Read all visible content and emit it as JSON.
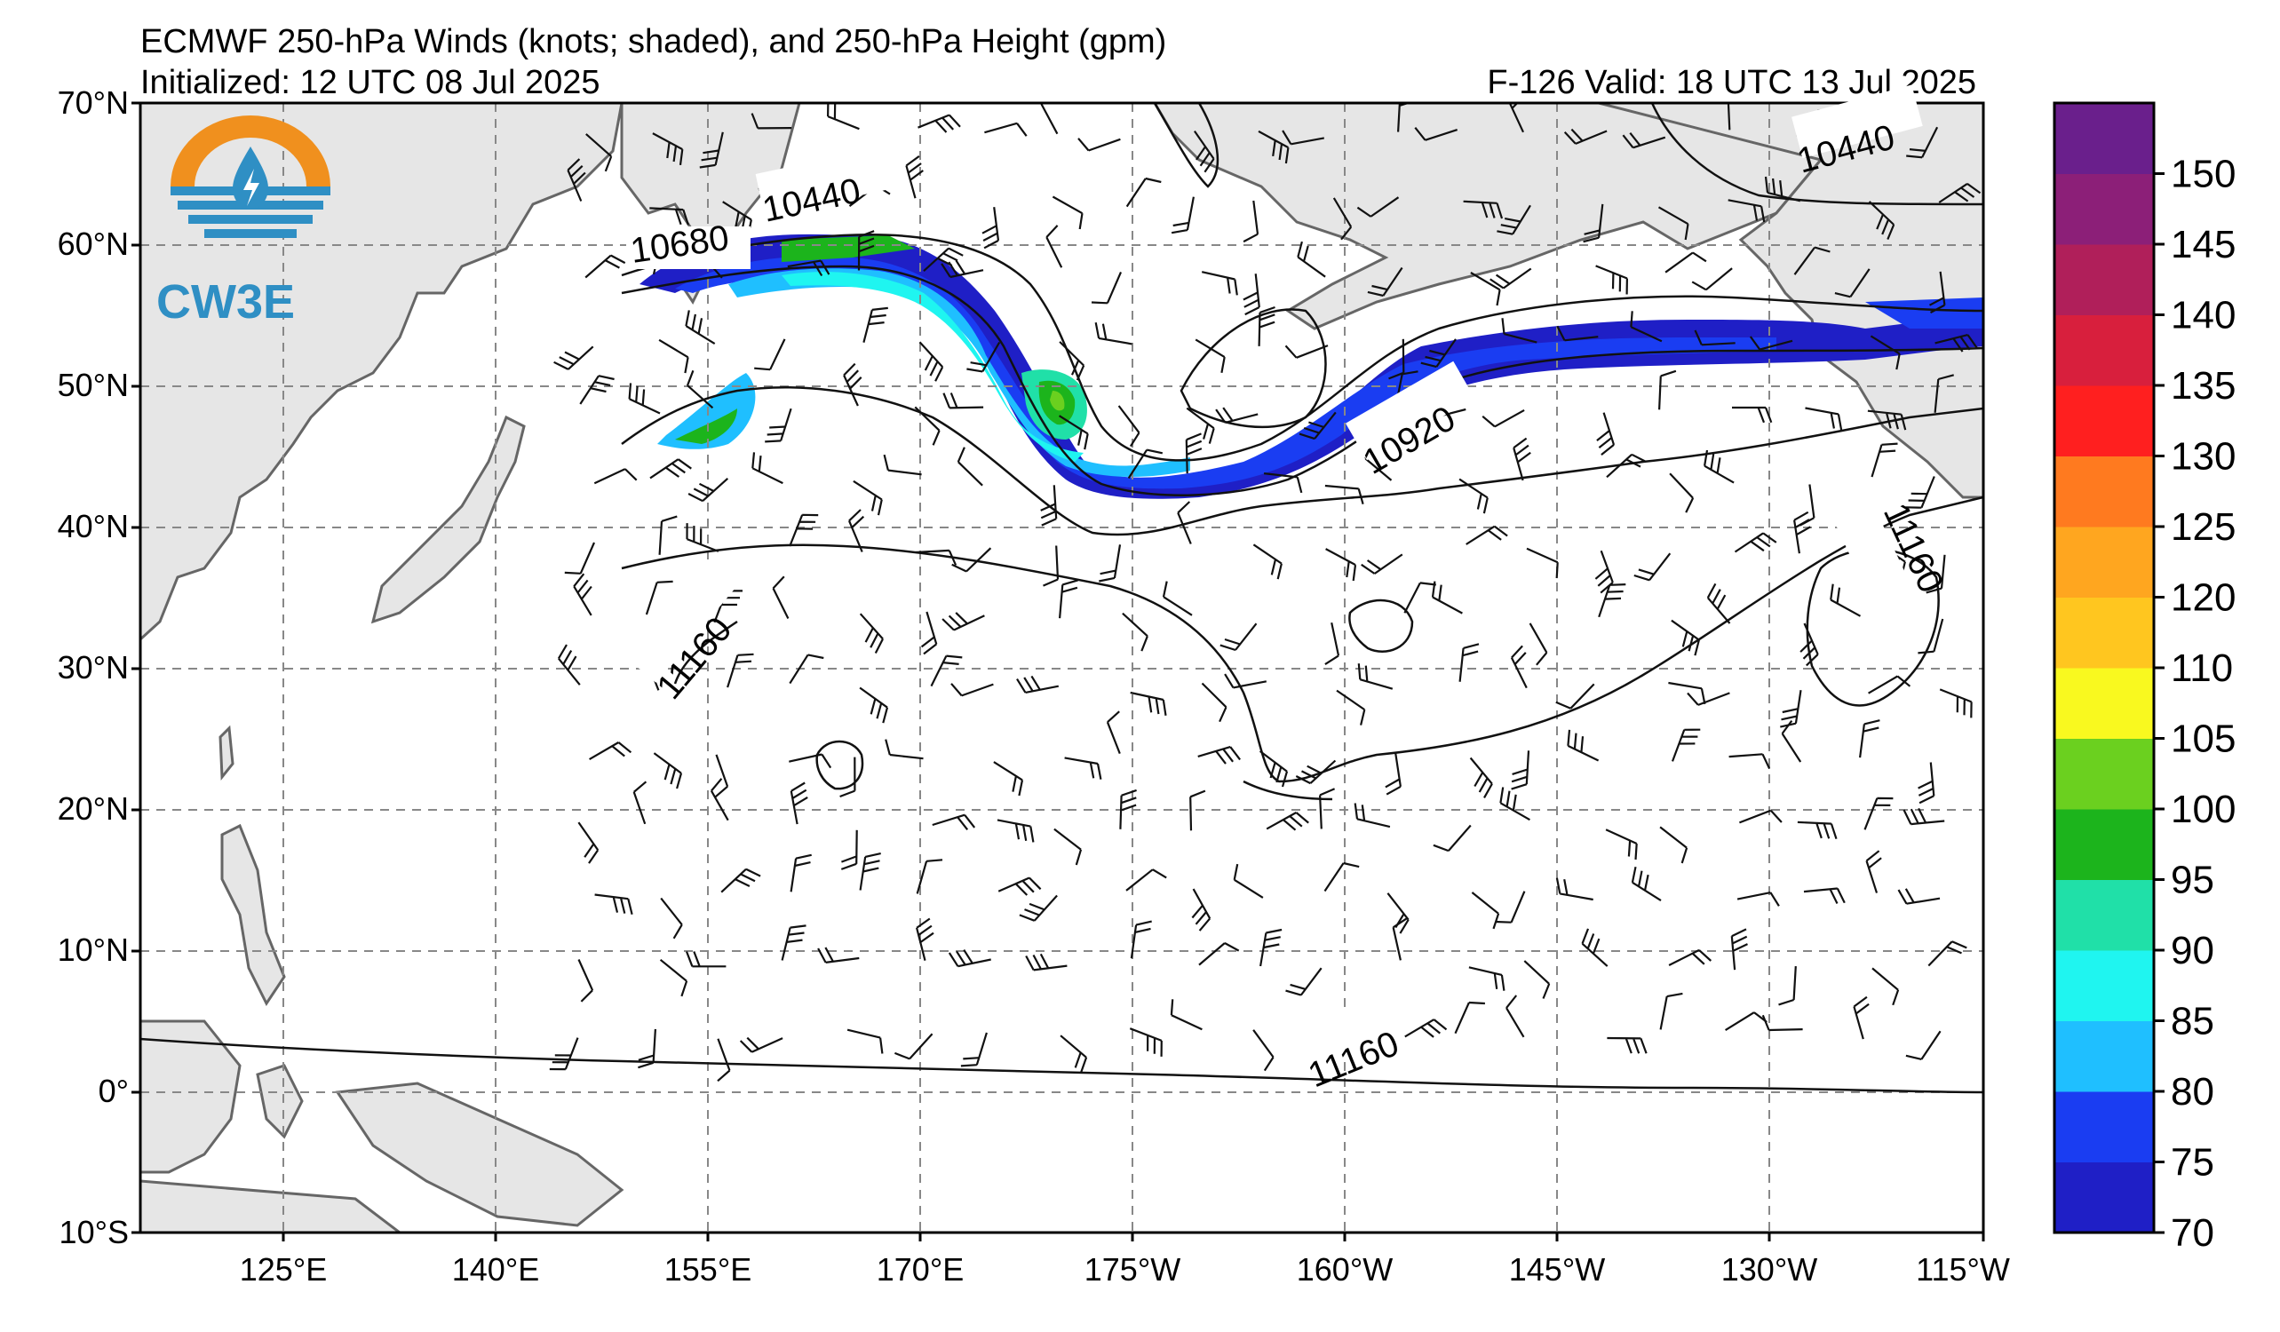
{
  "header": {
    "title": "ECMWF 250-hPa Winds (knots; shaded), and 250-hPa Height (gpm)",
    "initialized": "Initialized: 12 UTC 08 Jul 2025",
    "valid": "F-126  Valid: 18 UTC 13 Jul 2025"
  },
  "logo": {
    "text": "CW3E",
    "colors": {
      "orange": "#f0901e",
      "blue": "#2f8fc4",
      "dark": "#1f5f86"
    }
  },
  "axes": {
    "lat_labels": [
      "70°N",
      "60°N",
      "50°N",
      "40°N",
      "30°N",
      "20°N",
      "10°N",
      "0°",
      "10°S"
    ],
    "lon_labels": [
      "125°E",
      "140°E",
      "155°E",
      "170°E",
      "175°W",
      "160°W",
      "145°W",
      "130°W",
      "115°W"
    ],
    "lat_range": [
      -10,
      70
    ],
    "lon_range_east": [
      115,
      245
    ]
  },
  "height_labels": [
    "10680",
    "10440",
    "10440",
    "10920",
    "11160",
    "11160",
    "11160"
  ],
  "colorbar": {
    "ticks": [
      "70",
      "75",
      "80",
      "85",
      "90",
      "95",
      "100",
      "105",
      "110",
      "120",
      "125",
      "130",
      "135",
      "140",
      "145",
      "150"
    ],
    "colors": [
      "#1f1fc6",
      "#1a3df2",
      "#1fbfff",
      "#1ff5f0",
      "#20e0a8",
      "#1cb41c",
      "#6bd01f",
      "#f9f91f",
      "#ffc61f",
      "#ffa61f",
      "#ff7a1f",
      "#ff1f1f",
      "#d81f3d",
      "#b01f5a",
      "#8c1f78",
      "#6a1f8c"
    ]
  }
}
